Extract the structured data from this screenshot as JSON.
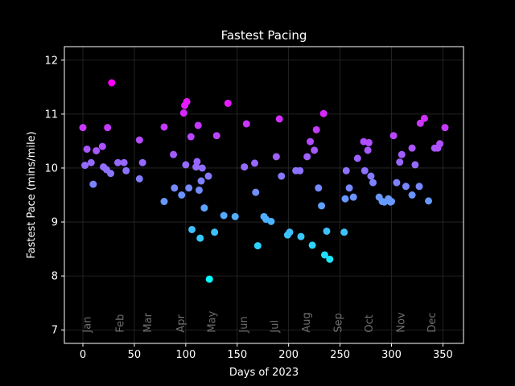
{
  "chart_data": {
    "type": "scatter",
    "title": "Fastest Pacing",
    "xlabel": "Days of 2023",
    "ylabel": "Fastest Pace (mins/mile)",
    "xlim": [
      -18,
      370
    ],
    "ylim": [
      6.75,
      12.25
    ],
    "xticks": [
      0,
      50,
      100,
      150,
      200,
      250,
      300,
      350
    ],
    "yticks": [
      7,
      8,
      9,
      10,
      11,
      12
    ],
    "grid": true,
    "colormap": [
      "#00ffff",
      "#ff00ff"
    ],
    "month_labels": [
      {
        "x": 4,
        "label": "Jan"
      },
      {
        "x": 36,
        "label": "Feb"
      },
      {
        "x": 63,
        "label": "Mar"
      },
      {
        "x": 95,
        "label": "Apr"
      },
      {
        "x": 125,
        "label": "May"
      },
      {
        "x": 156,
        "label": "Jun"
      },
      {
        "x": 186,
        "label": "Jul"
      },
      {
        "x": 217,
        "label": "Aug"
      },
      {
        "x": 248,
        "label": "Sep"
      },
      {
        "x": 278,
        "label": "Oct"
      },
      {
        "x": 309,
        "label": "Nov"
      },
      {
        "x": 339,
        "label": "Dec"
      }
    ],
    "x": [
      0,
      2,
      4,
      8,
      10,
      13,
      19,
      20,
      23,
      24,
      27,
      28,
      34,
      40,
      42,
      55,
      55,
      58,
      79,
      79,
      88,
      89,
      96,
      98,
      99,
      100,
      101,
      103,
      105,
      106,
      110,
      111,
      112,
      113,
      114,
      115,
      116,
      118,
      122,
      123,
      128,
      130,
      137,
      141,
      148,
      157,
      159,
      167,
      168,
      170,
      176,
      178,
      183,
      188,
      191,
      193,
      199,
      201,
      207,
      211,
      212,
      218,
      221,
      223,
      225,
      227,
      229,
      232,
      234,
      235,
      237,
      240,
      254,
      255,
      256,
      259,
      263,
      267,
      273,
      274,
      277,
      278,
      280,
      282,
      288,
      291,
      293,
      297,
      299,
      300,
      302,
      305,
      308,
      310,
      314,
      320,
      320,
      323,
      327,
      328,
      332,
      336,
      342,
      345,
      347,
      352
    ],
    "y": [
      10.75,
      10.05,
      10.35,
      10.1,
      9.7,
      10.32,
      10.4,
      10.02,
      9.97,
      10.75,
      9.9,
      11.58,
      10.1,
      10.1,
      9.95,
      10.52,
      9.8,
      10.1,
      10.76,
      9.38,
      10.25,
      9.63,
      9.5,
      11.02,
      11.16,
      10.06,
      11.23,
      9.63,
      10.58,
      8.86,
      10.02,
      10.12,
      10.79,
      9.59,
      8.7,
      9.76,
      10.0,
      9.26,
      9.85,
      7.94,
      8.81,
      10.6,
      9.12,
      11.2,
      9.1,
      10.02,
      10.82,
      10.09,
      9.55,
      8.56,
      9.1,
      9.05,
      9.01,
      10.21,
      10.91,
      9.85,
      8.76,
      8.81,
      9.95,
      9.95,
      8.73,
      10.21,
      10.49,
      8.57,
      10.33,
      10.71,
      9.63,
      9.3,
      11.01,
      8.39,
      8.83,
      8.31,
      8.81,
      9.43,
      9.95,
      9.63,
      9.46,
      10.18,
      10.49,
      9.95,
      10.33,
      10.47,
      9.85,
      9.73,
      9.46,
      9.38,
      9.37,
      9.43,
      9.37,
      9.38,
      10.6,
      9.73,
      10.11,
      10.25,
      9.66,
      9.5,
      10.37,
      10.06,
      9.66,
      10.83,
      10.92,
      9.39,
      10.37,
      10.37,
      10.45,
      10.75
    ]
  }
}
